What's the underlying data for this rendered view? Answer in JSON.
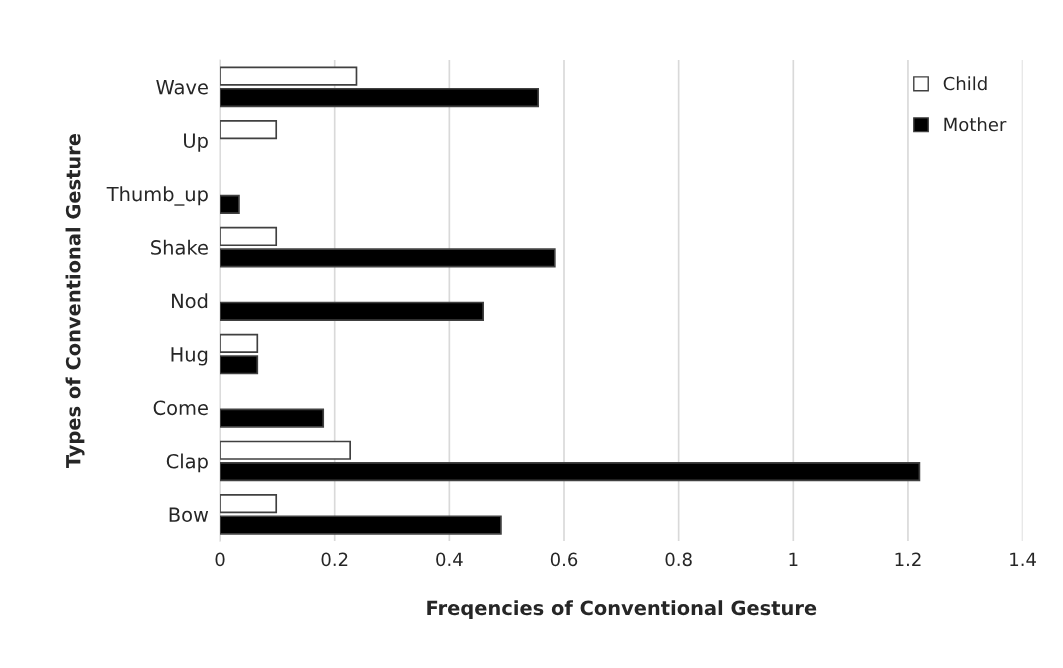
{
  "chart_data": {
    "type": "bar",
    "orientation": "horizontal",
    "xlabel": "Freqencies of Conventional Gesture",
    "ylabel": "Types of Conventional Gesture",
    "categories": [
      "Wave",
      "Up",
      "Thumb_up",
      "Shake",
      "Nod",
      "Hug",
      "Come",
      "Clap",
      "Bow"
    ],
    "series": [
      {
        "name": "Child",
        "color": "#ffffff",
        "values": [
          0.238,
          0.098,
          null,
          0.098,
          null,
          0.065,
          null,
          0.227,
          0.098
        ]
      },
      {
        "name": "Mother",
        "color": "#000000",
        "values": [
          0.555,
          null,
          0.033,
          0.584,
          0.459,
          0.065,
          0.18,
          1.22,
          0.49
        ]
      }
    ],
    "xlim": [
      0,
      1.4
    ],
    "xticks": [
      0,
      0.2,
      0.4,
      0.6,
      0.8,
      1,
      1.2,
      1.4
    ],
    "grid": "x",
    "legend": "top right"
  }
}
